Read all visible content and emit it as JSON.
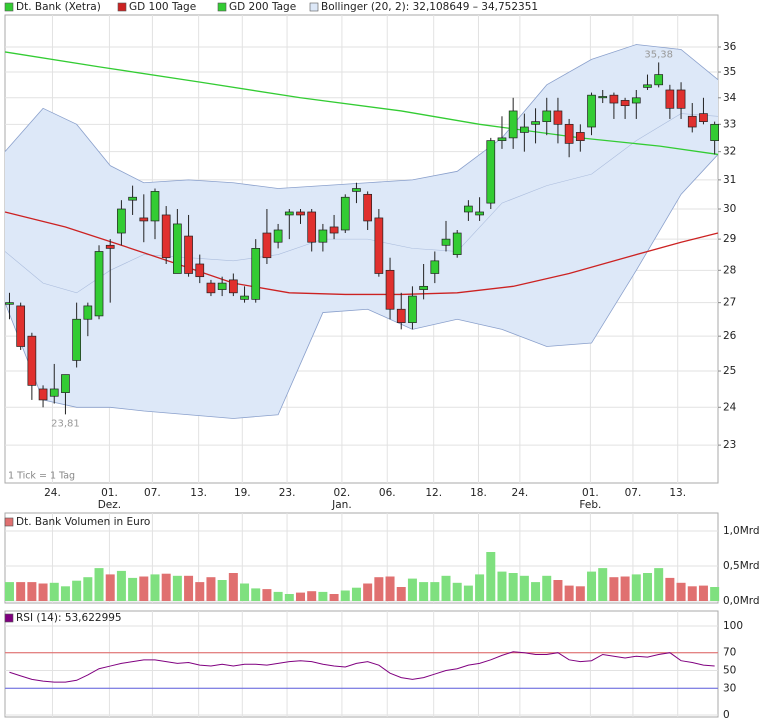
{
  "chart_data": [
    {
      "type": "candlestick",
      "name": "Dt. Bank (Xetra)",
      "up_color": "#33cc33",
      "down_color": "#e0302e",
      "log_scale": true,
      "grid": true,
      "note": "1 Tick = 1 Tag",
      "xlim": [
        -0.4,
        63.3
      ],
      "ylim": [
        22.04,
        37.32
      ],
      "yticks": [
        23,
        24,
        25,
        26,
        27,
        28,
        29,
        30,
        31,
        32,
        33,
        34,
        35,
        36
      ],
      "xticks": [
        {
          "value": 3.84,
          "label": "24."
        },
        {
          "value": 8.93,
          "label": "01."
        },
        {
          "value": 12.77,
          "label": "07."
        },
        {
          "value": 16.9,
          "label": "13."
        },
        {
          "value": 20.8,
          "label": "19."
        },
        {
          "value": 24.8,
          "label": "23."
        },
        {
          "value": 29.7,
          "label": "02."
        },
        {
          "value": 33.75,
          "label": "06."
        },
        {
          "value": 37.9,
          "label": "12."
        },
        {
          "value": 41.9,
          "label": "18."
        },
        {
          "value": 45.6,
          "label": "24."
        },
        {
          "value": 51.9,
          "label": "01."
        },
        {
          "value": 55.7,
          "label": "07."
        },
        {
          "value": 59.7,
          "label": "13."
        }
      ],
      "xticks_month": [
        {
          "value": 8.93,
          "label": "Dez."
        },
        {
          "value": 29.7,
          "label": "Jan."
        },
        {
          "value": 51.9,
          "label": "Feb."
        }
      ],
      "open": [
        26.95,
        26.9,
        26.0,
        24.5,
        24.3,
        24.4,
        25.3,
        26.5,
        26.6,
        28.8,
        29.2,
        30.3,
        29.7,
        29.6,
        29.8,
        27.9,
        29.1,
        28.2,
        27.6,
        27.4,
        27.7,
        27.1,
        27.1,
        29.2,
        28.9,
        29.8,
        29.9,
        29.9,
        28.9,
        29.4,
        29.3,
        30.6,
        30.5,
        29.7,
        28.0,
        26.8,
        26.4,
        27.4,
        27.9,
        28.8,
        28.5,
        29.9,
        29.8,
        30.2,
        32.4,
        32.5,
        32.7,
        33.0,
        33.1,
        33.5,
        33.0,
        32.7,
        32.9,
        34.0,
        34.1,
        33.9,
        33.8,
        34.4,
        34.5,
        34.3,
        34.3,
        33.3,
        33.4,
        32.4
      ],
      "high": [
        27.3,
        27.0,
        26.1,
        24.6,
        25.2,
        24.9,
        27.0,
        27.0,
        28.8,
        29.0,
        30.3,
        30.8,
        30.5,
        30.7,
        30.1,
        30.0,
        29.8,
        28.5,
        27.7,
        27.8,
        27.9,
        27.5,
        29.0,
        30.0,
        29.5,
        30.0,
        30.0,
        30.0,
        29.5,
        29.8,
        30.5,
        30.9,
        30.6,
        30.0,
        28.4,
        27.3,
        27.5,
        28.2,
        28.6,
        29.6,
        29.3,
        30.3,
        30.4,
        32.5,
        33.3,
        34.0,
        33.4,
        33.6,
        34.0,
        34.0,
        33.2,
        33.0,
        34.2,
        34.3,
        34.2,
        34.0,
        34.3,
        34.9,
        35.38,
        34.5,
        34.6,
        33.8,
        34.0,
        33.1
      ],
      "low": [
        26.5,
        25.6,
        24.2,
        24.0,
        24.1,
        23.81,
        25.1,
        26.0,
        26.5,
        27.0,
        28.8,
        29.8,
        28.9,
        29.0,
        28.2,
        27.9,
        27.8,
        27.6,
        27.2,
        27.2,
        27.2,
        27.0,
        27.0,
        28.2,
        28.7,
        29.0,
        29.5,
        28.6,
        28.6,
        29.0,
        29.2,
        30.2,
        29.3,
        27.8,
        26.5,
        26.2,
        26.2,
        27.1,
        27.6,
        28.6,
        28.4,
        29.6,
        29.6,
        30.0,
        32.1,
        32.1,
        32.0,
        32.3,
        32.6,
        32.3,
        31.8,
        32.0,
        32.6,
        33.8,
        33.2,
        33.2,
        33.2,
        34.3,
        34.4,
        33.2,
        33.2,
        32.7,
        33.0,
        31.9
      ],
      "close": [
        27.0,
        25.7,
        24.6,
        24.2,
        24.5,
        24.9,
        26.5,
        26.9,
        28.6,
        28.7,
        30.0,
        30.4,
        29.6,
        30.6,
        28.4,
        29.5,
        27.9,
        27.8,
        27.3,
        27.6,
        27.3,
        27.2,
        28.7,
        28.4,
        29.3,
        29.9,
        29.8,
        28.9,
        29.3,
        29.2,
        30.4,
        30.7,
        29.6,
        27.9,
        26.8,
        26.4,
        27.2,
        27.5,
        28.3,
        29.0,
        29.2,
        30.1,
        29.9,
        32.4,
        32.5,
        33.5,
        32.9,
        33.1,
        33.5,
        33.0,
        32.3,
        32.4,
        34.1,
        34.05,
        33.8,
        33.7,
        34.0,
        34.5,
        34.9,
        33.6,
        33.6,
        32.9,
        33.1,
        33.0
      ],
      "annotations": [
        {
          "value": 35.38,
          "label": "35,38"
        },
        {
          "value": 23.81,
          "label": "23,81"
        }
      ],
      "band": {
        "name": "Bollinger (20, 2): 32,108649 – 34,752351",
        "color": "#8aa0cc",
        "fill": "#dde8f8",
        "x": [
          -0.4,
          3,
          6,
          9,
          12,
          16,
          20,
          24,
          28,
          32,
          36,
          40,
          44,
          48,
          52,
          56,
          60,
          63.3
        ],
        "upper": [
          32.0,
          33.6,
          33.0,
          31.5,
          30.9,
          31.0,
          30.9,
          30.7,
          30.8,
          30.9,
          31.0,
          31.3,
          32.5,
          34.5,
          35.5,
          36.1,
          35.9,
          34.7
        ],
        "middle": [
          28.6,
          27.6,
          27.3,
          28.0,
          28.5,
          28.4,
          28.3,
          28.5,
          29.0,
          29.0,
          28.7,
          28.6,
          30.2,
          30.8,
          31.2,
          32.4,
          33.4,
          33.3
        ],
        "lower": [
          27.0,
          24.2,
          24.0,
          24.0,
          23.9,
          23.8,
          23.7,
          23.8,
          26.7,
          26.8,
          26.2,
          26.5,
          26.2,
          25.7,
          25.8,
          28.0,
          30.5,
          31.9
        ]
      },
      "series": [
        {
          "name": "GD 100 Tage",
          "color": "#cc2222",
          "x": [
            -0.4,
            5,
            10,
            15,
            20,
            25,
            30,
            35,
            40,
            45,
            50,
            55,
            60,
            63.3
          ],
          "values": [
            29.9,
            29.4,
            28.8,
            28.2,
            27.6,
            27.3,
            27.25,
            27.25,
            27.3,
            27.5,
            27.9,
            28.4,
            28.9,
            29.2
          ]
        },
        {
          "name": "GD 200 Tage",
          "color": "#33cc33",
          "x": [
            -0.4,
            8.1,
            17.1,
            26,
            35,
            42,
            51,
            58.1,
            63.3
          ],
          "values": [
            35.8,
            35.2,
            34.6,
            34.0,
            33.5,
            33.0,
            32.5,
            32.2,
            31.9
          ]
        }
      ]
    },
    {
      "type": "bar",
      "name": "Dt. Bank Volumen in Euro",
      "ylim": [
        0,
        1
      ],
      "yticks": [
        {
          "value": 0,
          "label": "0,0Mrd"
        },
        {
          "value": 0.5,
          "label": "0,5Mrd"
        },
        {
          "value": 1,
          "label": "1,0Mrd"
        }
      ],
      "values": [
        0.27,
        0.27,
        0.27,
        0.25,
        0.26,
        0.21,
        0.29,
        0.34,
        0.47,
        0.38,
        0.43,
        0.33,
        0.35,
        0.38,
        0.39,
        0.36,
        0.36,
        0.27,
        0.34,
        0.3,
        0.4,
        0.25,
        0.18,
        0.17,
        0.13,
        0.1,
        0.12,
        0.14,
        0.13,
        0.1,
        0.15,
        0.19,
        0.25,
        0.34,
        0.35,
        0.2,
        0.32,
        0.27,
        0.27,
        0.36,
        0.26,
        0.22,
        0.38,
        0.7,
        0.42,
        0.4,
        0.36,
        0.27,
        0.36,
        0.3,
        0.22,
        0.21,
        0.42,
        0.47,
        0.34,
        0.35,
        0.38,
        0.4,
        0.47,
        0.33,
        0.26,
        0.21,
        0.22,
        0.2
      ]
    },
    {
      "type": "line",
      "name": "RSI (14): 53,622995",
      "color": "#800080",
      "ylim": [
        0,
        100
      ],
      "yticks": [
        0,
        30,
        50,
        70,
        100
      ],
      "levels": [
        {
          "value": 70,
          "color": "#e06060"
        },
        {
          "value": 30,
          "color": "#6060e0"
        }
      ],
      "values": [
        48,
        44,
        40,
        38,
        37,
        37,
        39,
        45,
        52,
        55,
        58,
        60,
        62,
        62,
        60,
        58,
        59,
        56,
        55,
        57,
        55,
        57,
        57,
        56,
        58,
        60,
        61,
        60,
        57,
        55,
        54,
        58,
        60,
        56,
        47,
        42,
        40,
        42,
        46,
        50,
        52,
        56,
        58,
        62,
        67,
        71,
        70,
        68,
        68,
        70,
        62,
        60,
        61,
        68,
        66,
        64,
        66,
        65,
        68,
        70,
        61,
        59,
        56,
        55
      ]
    }
  ]
}
